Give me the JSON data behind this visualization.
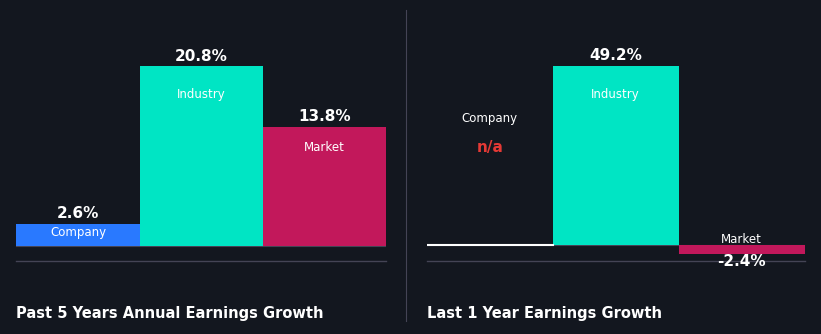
{
  "background_color": "#13171f",
  "left_chart": {
    "title": "Past 5 Years Annual Earnings Growth",
    "bars": [
      {
        "label": "Company",
        "value": 2.6,
        "color": "#2979ff",
        "value_display": "2.6%",
        "value_color": "#ffffff"
      },
      {
        "label": "Industry",
        "value": 20.8,
        "color": "#00e5c4",
        "value_display": "20.8%",
        "value_color": "#ffffff"
      },
      {
        "label": "Market",
        "value": 13.8,
        "color": "#c2185b",
        "value_display": "13.8%",
        "value_color": "#ffffff"
      }
    ]
  },
  "right_chart": {
    "title": "Last 1 Year Earnings Growth",
    "bars": [
      {
        "label": "Company",
        "value": 0,
        "color": "#2979ff",
        "value_display": "n/a",
        "value_color": "#e53935"
      },
      {
        "label": "Industry",
        "value": 49.2,
        "color": "#00e5c4",
        "value_display": "49.2%",
        "value_color": "#ffffff"
      },
      {
        "label": "Market",
        "value": -2.4,
        "color": "#c2185b",
        "value_display": "-2.4%",
        "value_color": "#ffffff"
      }
    ]
  },
  "title_fontsize": 10.5,
  "label_fontsize": 8.5,
  "value_fontsize": 11,
  "text_color": "#ffffff",
  "divider_color": "#444455"
}
